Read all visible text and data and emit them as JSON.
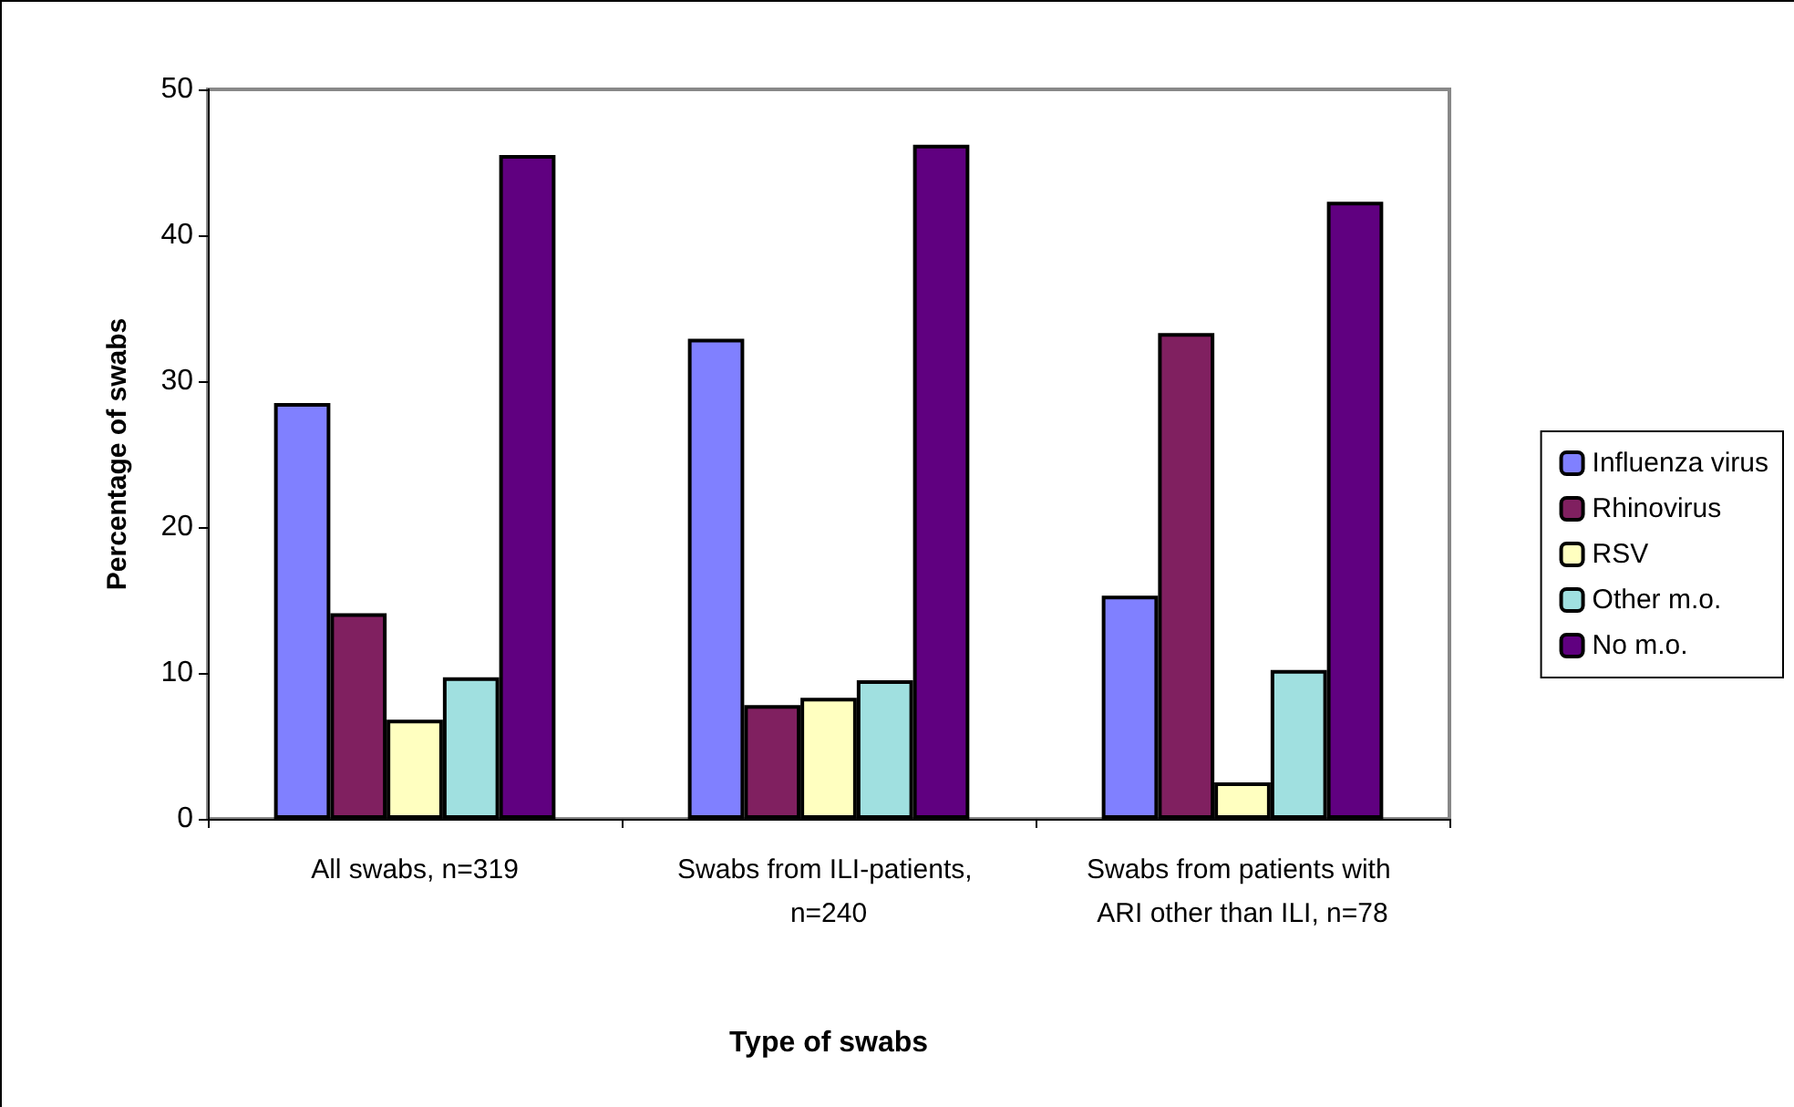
{
  "chart_data": {
    "type": "bar",
    "xlabel": "Type of swabs",
    "ylabel": "Percentage of swabs",
    "categories": [
      "All swabs, n=319",
      "Swabs from ILI-patients, n=240",
      "Swabs from patients with ARI other than ILI, n=78"
    ],
    "series": [
      {
        "name": "Influenza virus",
        "color": "#8080ff",
        "values": [
          28.5,
          32.9,
          15.3
        ]
      },
      {
        "name": "Rhinovirus",
        "color": "#802060",
        "values": [
          14.1,
          7.8,
          33.3
        ]
      },
      {
        "name": "RSV",
        "color": "#ffffc0",
        "values": [
          6.8,
          8.3,
          2.5
        ]
      },
      {
        "name": "Other m.o.",
        "color": "#a0e0e0",
        "values": [
          9.7,
          9.5,
          10.2
        ]
      },
      {
        "name": "No m.o.",
        "color": "#600080",
        "values": [
          45.5,
          46.2,
          42.3
        ]
      }
    ],
    "ylim": [
      0,
      50
    ],
    "yticks": [
      0,
      10,
      20,
      30,
      40,
      50
    ],
    "grid": false,
    "legend": "right"
  }
}
